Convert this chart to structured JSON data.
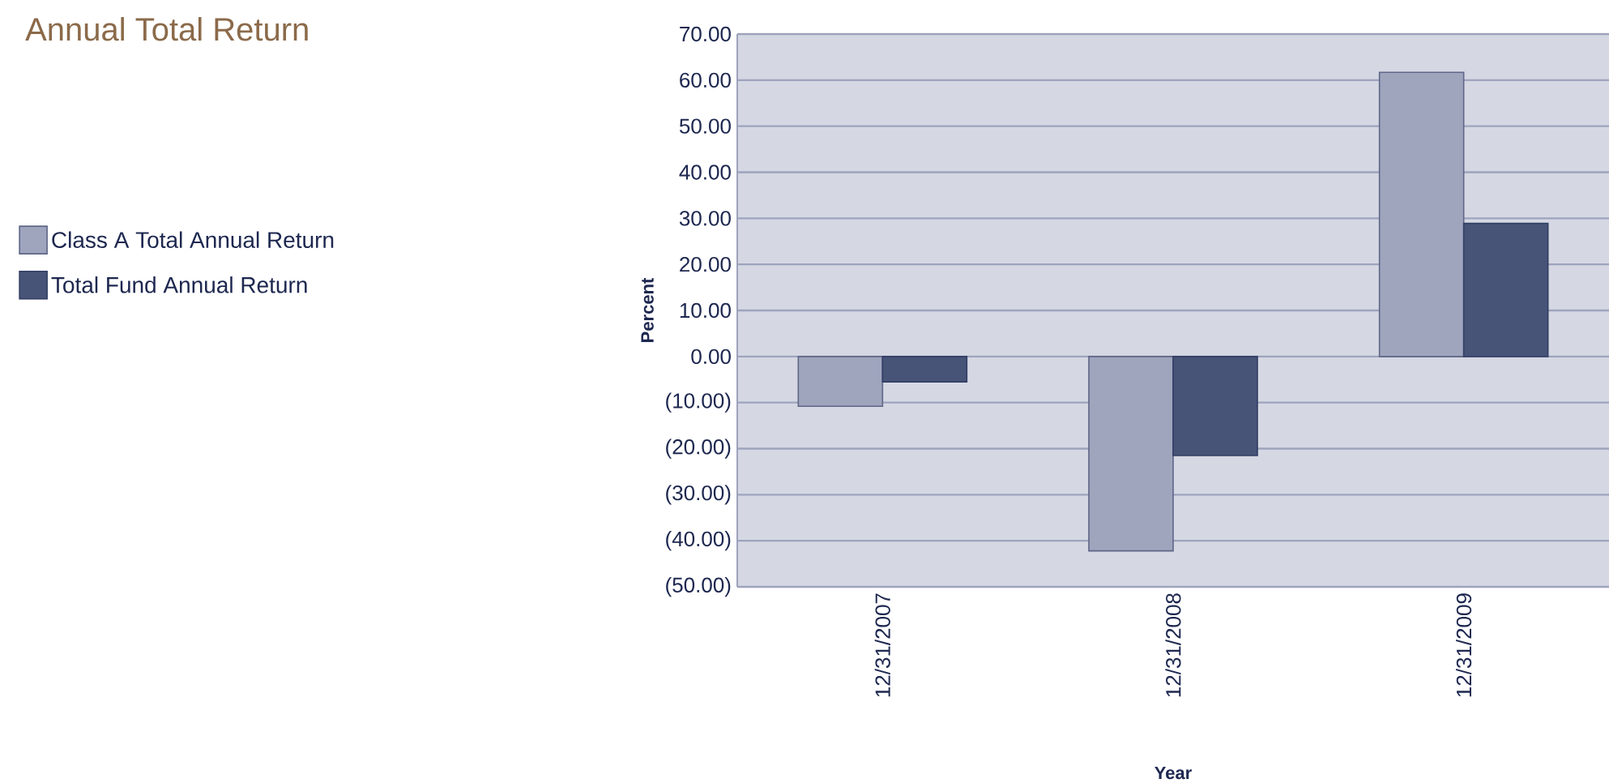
{
  "chart_data": {
    "type": "bar",
    "title": "Annual Total Return",
    "xlabel": "Year",
    "ylabel": "Percent",
    "categories": [
      "12/31/2007",
      "12/31/2008",
      "12/31/2009"
    ],
    "series": [
      {
        "name": "Class A Total Annual Return",
        "color": "#a0a5be",
        "values": [
          -10.8,
          -42.2,
          61.7
        ]
      },
      {
        "name": "Total Fund Annual Return",
        "color": "#475477",
        "values": [
          -5.5,
          -21.5,
          28.9
        ]
      }
    ],
    "ylim": [
      -50,
      70
    ],
    "yticks": [
      {
        "value": -50,
        "label": "(50.00)"
      },
      {
        "value": -40,
        "label": "(40.00)"
      },
      {
        "value": -30,
        "label": "(30.00)"
      },
      {
        "value": -20,
        "label": "(20.00)"
      },
      {
        "value": -10,
        "label": "(10.00)"
      },
      {
        "value": 0,
        "label": "0.00"
      },
      {
        "value": 10,
        "label": "10.00"
      },
      {
        "value": 20,
        "label": "20.00"
      },
      {
        "value": 30,
        "label": "30.00"
      },
      {
        "value": 40,
        "label": "40.00"
      },
      {
        "value": 50,
        "label": "50.00"
      },
      {
        "value": 60,
        "label": "60.00"
      },
      {
        "value": 70,
        "label": "70.00"
      }
    ],
    "grid": "y",
    "legend": "left"
  }
}
